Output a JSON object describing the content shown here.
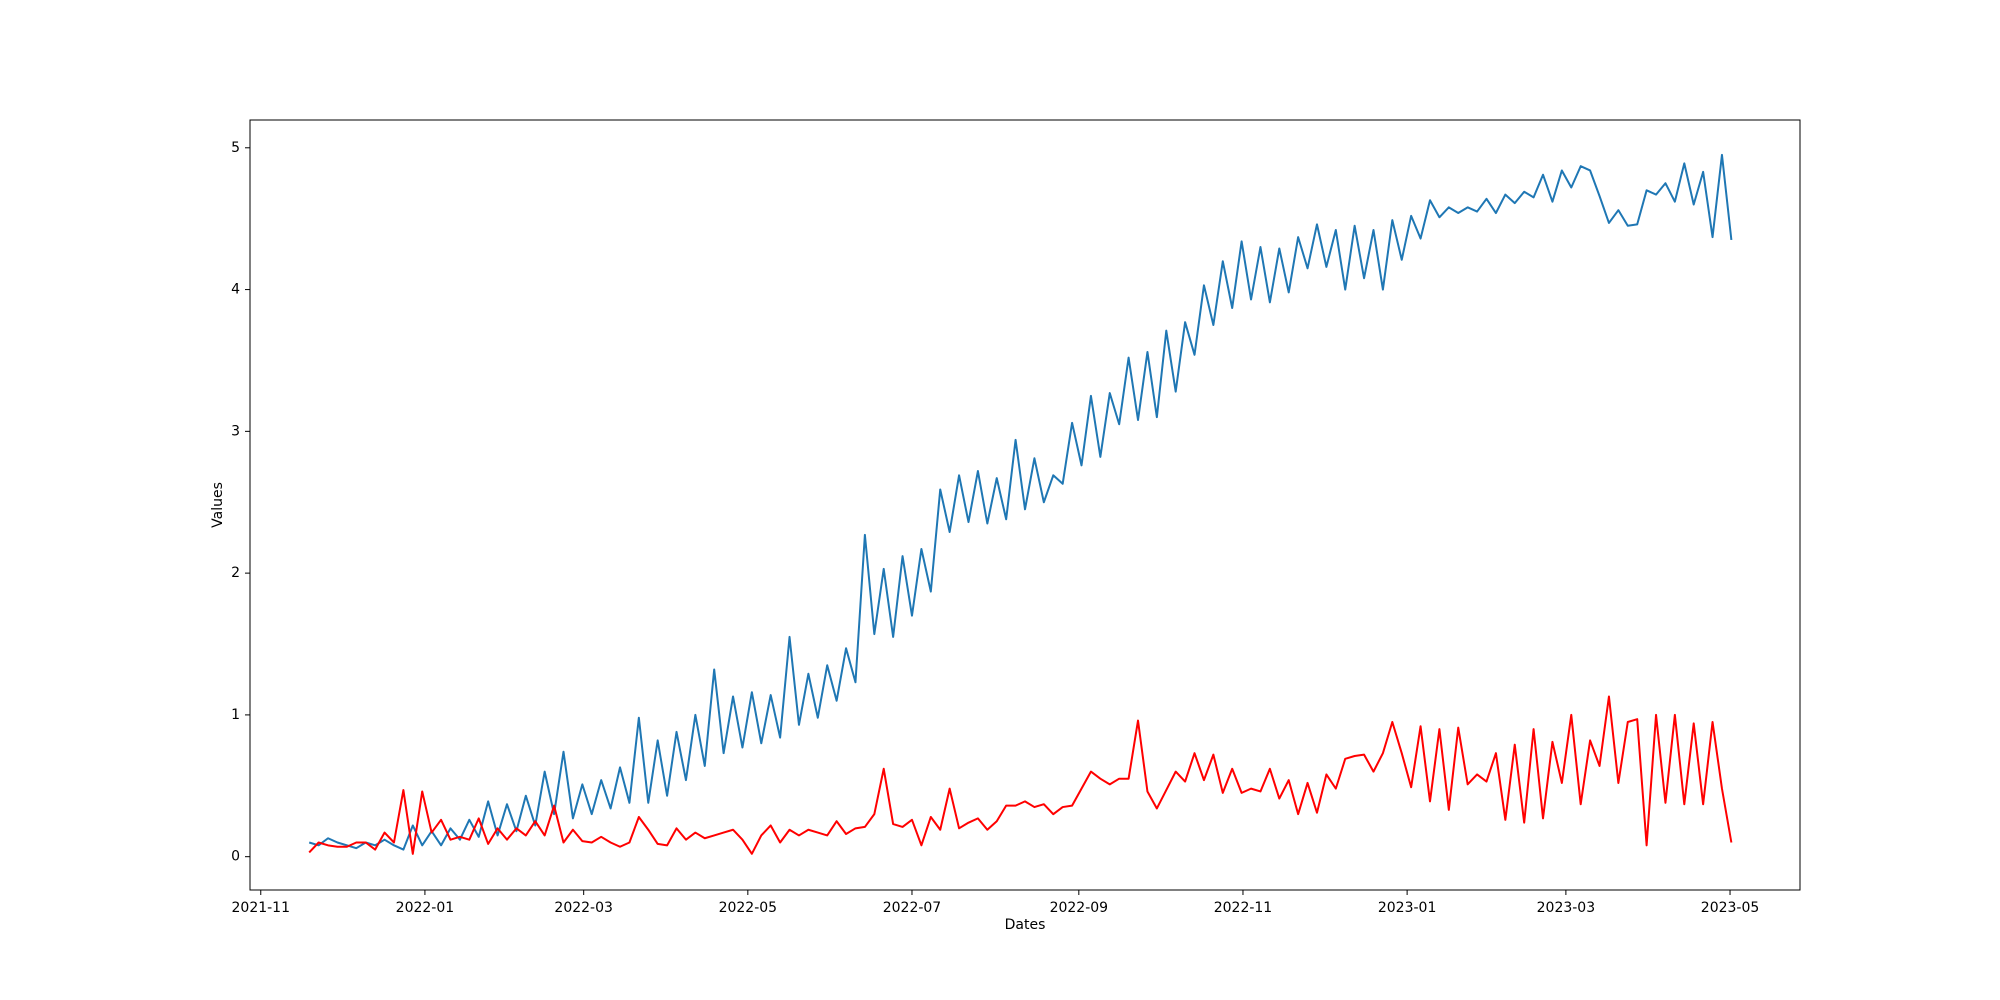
{
  "chart_data": {
    "type": "line",
    "xlabel": "Dates",
    "ylabel": "Values",
    "xlim": [
      18928,
      19504
    ],
    "ylim": [
      -0.235,
      5.196
    ],
    "xticks": [
      {
        "value": 18932,
        "label": "2021-11"
      },
      {
        "value": 18993,
        "label": "2022-01"
      },
      {
        "value": 19052,
        "label": "2022-03"
      },
      {
        "value": 19113,
        "label": "2022-05"
      },
      {
        "value": 19174,
        "label": "2022-07"
      },
      {
        "value": 19236,
        "label": "2022-09"
      },
      {
        "value": 19297,
        "label": "2022-11"
      },
      {
        "value": 19358,
        "label": "2023-01"
      },
      {
        "value": 19417,
        "label": "2023-03"
      },
      {
        "value": 19478,
        "label": "2023-05"
      }
    ],
    "yticks": [
      0,
      1,
      2,
      3,
      4,
      5
    ],
    "x": [
      18950,
      18953.5,
      18957,
      18960.5,
      18964,
      18967.5,
      18971,
      18974.5,
      18978,
      18981.5,
      18985,
      18988.5,
      18992,
      18995.5,
      18999,
      19002.5,
      19006,
      19009.5,
      19013,
      19016.5,
      19020,
      19023.5,
      19027,
      19030.5,
      19034,
      19037.5,
      19041,
      19044.5,
      19048,
      19051.5,
      19055,
      19058.5,
      19062,
      19065.5,
      19069,
      19072.5,
      19076,
      19079.5,
      19083,
      19086.5,
      19090,
      19093.5,
      19097,
      19100.5,
      19104,
      19107.5,
      19111,
      19114.5,
      19118,
      19121.5,
      19125,
      19128.5,
      19132,
      19135.5,
      19139,
      19142.5,
      19146,
      19149.5,
      19153,
      19156.5,
      19160,
      19163.5,
      19167,
      19170.5,
      19174,
      19177.5,
      19181,
      19184.5,
      19188,
      19191.5,
      19195,
      19198.5,
      19202,
      19205.5,
      19209,
      19212.5,
      19216,
      19219.5,
      19223,
      19226.5,
      19230,
      19233.5,
      19237,
      19240.5,
      19244,
      19247.5,
      19251,
      19254.5,
      19258,
      19261.5,
      19265,
      19268.5,
      19272,
      19275.5,
      19279,
      19282.5,
      19286,
      19289.5,
      19293,
      19296.5,
      19300,
      19303.5,
      19307,
      19310.5,
      19314,
      19317.5,
      19321,
      19324.5,
      19328,
      19331.5,
      19335,
      19338.5,
      19342,
      19345.5,
      19349,
      19352.5,
      19356,
      19359.5,
      19363,
      19366.5,
      19370,
      19373.5,
      19377,
      19380.5,
      19384,
      19387.5,
      19391,
      19394.5,
      19398,
      19401.5,
      19405,
      19408.5,
      19412,
      19415.5,
      19419,
      19422.5,
      19426,
      19429.5,
      19433,
      19436.5,
      19440,
      19443.5,
      19447,
      19450.5,
      19454,
      19457.5,
      19461,
      19464.5,
      19468,
      19471.5,
      19475,
      19478.5
    ],
    "series": [
      {
        "color": "#1f77b4",
        "values": [
          0.1,
          0.08,
          0.13,
          0.1,
          0.08,
          0.06,
          0.1,
          0.08,
          0.12,
          0.08,
          0.05,
          0.22,
          0.08,
          0.18,
          0.08,
          0.2,
          0.12,
          0.26,
          0.14,
          0.39,
          0.15,
          0.37,
          0.18,
          0.43,
          0.22,
          0.6,
          0.3,
          0.74,
          0.27,
          0.51,
          0.3,
          0.54,
          0.34,
          0.63,
          0.38,
          0.98,
          0.38,
          0.82,
          0.43,
          0.88,
          0.54,
          1.0,
          0.64,
          1.32,
          0.73,
          1.13,
          0.77,
          1.16,
          0.8,
          1.14,
          0.84,
          1.55,
          0.93,
          1.29,
          0.98,
          1.35,
          1.1,
          1.47,
          1.23,
          2.27,
          1.57,
          2.03,
          1.55,
          2.12,
          1.7,
          2.17,
          1.87,
          2.59,
          2.29,
          2.69,
          2.36,
          2.72,
          2.35,
          2.67,
          2.38,
          2.94,
          2.45,
          2.81,
          2.5,
          2.69,
          2.63,
          3.06,
          2.76,
          3.25,
          2.82,
          3.27,
          3.05,
          3.52,
          3.08,
          3.56,
          3.1,
          3.71,
          3.28,
          3.77,
          3.54,
          4.03,
          3.75,
          4.2,
          3.87,
          4.34,
          3.93,
          4.3,
          3.91,
          4.29,
          3.98,
          4.37,
          4.15,
          4.46,
          4.16,
          4.42,
          4.0,
          4.45,
          4.08,
          4.42,
          4.0,
          4.49,
          4.21,
          4.52,
          4.36,
          4.63,
          4.51,
          4.58,
          4.54,
          4.58,
          4.55,
          4.64,
          4.54,
          4.67,
          4.61,
          4.69,
          4.65,
          4.81,
          4.62,
          4.84,
          4.72,
          4.87,
          4.84,
          4.66,
          4.47,
          4.56,
          4.45,
          4.46,
          4.7,
          4.67,
          4.75,
          4.62,
          4.89,
          4.6,
          4.83,
          4.37,
          4.95,
          4.35
        ]
      },
      {
        "color": "#ff0000",
        "values": [
          0.03,
          0.1,
          0.08,
          0.07,
          0.07,
          0.1,
          0.1,
          0.05,
          0.17,
          0.1,
          0.47,
          0.02,
          0.46,
          0.17,
          0.26,
          0.12,
          0.14,
          0.12,
          0.27,
          0.09,
          0.2,
          0.12,
          0.2,
          0.15,
          0.25,
          0.15,
          0.36,
          0.1,
          0.19,
          0.11,
          0.1,
          0.14,
          0.1,
          0.07,
          0.1,
          0.28,
          0.19,
          0.09,
          0.08,
          0.2,
          0.12,
          0.17,
          0.13,
          0.15,
          0.17,
          0.19,
          0.12,
          0.02,
          0.15,
          0.22,
          0.1,
          0.19,
          0.15,
          0.19,
          0.17,
          0.15,
          0.25,
          0.16,
          0.2,
          0.21,
          0.3,
          0.62,
          0.23,
          0.21,
          0.26,
          0.08,
          0.28,
          0.19,
          0.48,
          0.2,
          0.24,
          0.27,
          0.19,
          0.25,
          0.36,
          0.36,
          0.39,
          0.35,
          0.37,
          0.3,
          0.35,
          0.36,
          0.48,
          0.6,
          0.55,
          0.51,
          0.55,
          0.55,
          0.96,
          0.46,
          0.34,
          0.47,
          0.6,
          0.53,
          0.73,
          0.54,
          0.72,
          0.45,
          0.62,
          0.45,
          0.48,
          0.46,
          0.62,
          0.41,
          0.54,
          0.3,
          0.52,
          0.31,
          0.58,
          0.48,
          0.69,
          0.71,
          0.72,
          0.6,
          0.73,
          0.95,
          0.73,
          0.49,
          0.92,
          0.39,
          0.9,
          0.33,
          0.91,
          0.51,
          0.58,
          0.53,
          0.73,
          0.26,
          0.79,
          0.24,
          0.9,
          0.27,
          0.81,
          0.52,
          1.0,
          0.37,
          0.82,
          0.64,
          1.13,
          0.52,
          0.95,
          0.97,
          0.08,
          1.0,
          0.38,
          1.0,
          0.37,
          0.94,
          0.37,
          0.95,
          0.48,
          0.1
        ]
      }
    ]
  }
}
